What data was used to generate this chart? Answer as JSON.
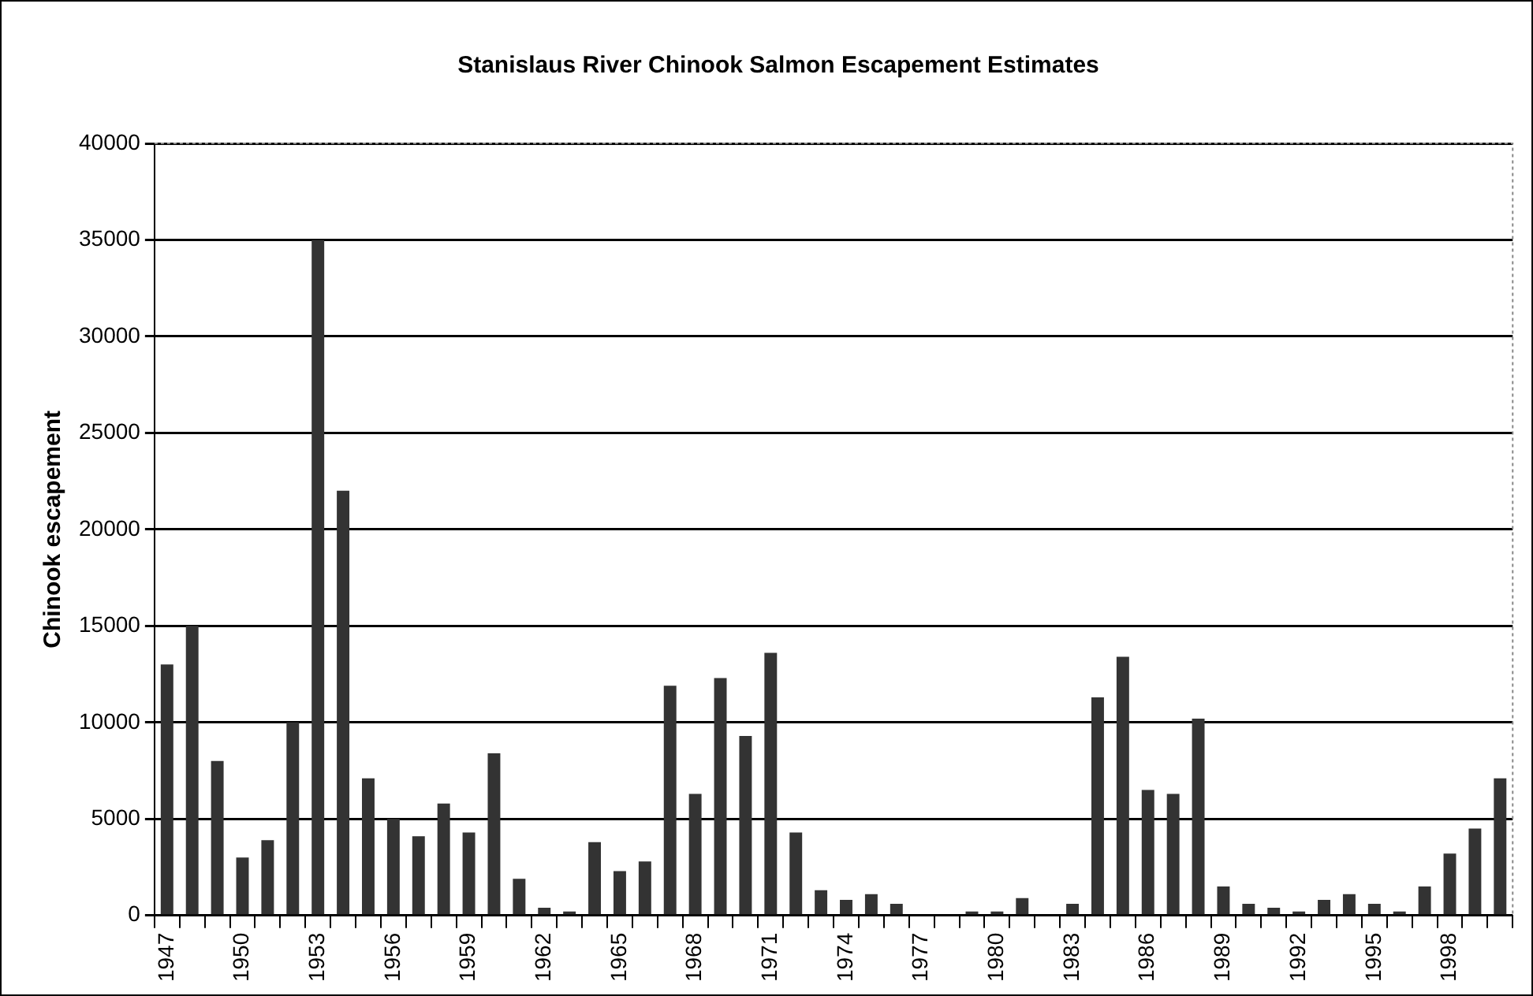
{
  "chart_data": {
    "type": "bar",
    "title": "Stanislaus River Chinook Salmon Escapement Estimates",
    "ylabel": "Chinook escapement",
    "categories": [
      "1947",
      null,
      null,
      "1950",
      null,
      null,
      "1953",
      null,
      null,
      "1956",
      null,
      null,
      "1959",
      null,
      null,
      "1962",
      null,
      null,
      "1965",
      null,
      null,
      "1968",
      null,
      null,
      "1971",
      null,
      null,
      "1974",
      null,
      null,
      "1977",
      null,
      null,
      "1980",
      null,
      null,
      "1983",
      null,
      null,
      "1986",
      null,
      null,
      "1989",
      null,
      null,
      "1992",
      null,
      null,
      "1995",
      null,
      null,
      "1998",
      null,
      null
    ],
    "values": [
      13000,
      15000,
      8000,
      3000,
      3900,
      10000,
      35000,
      22000,
      7100,
      5000,
      4100,
      5800,
      4300,
      8400,
      1900,
      400,
      200,
      3800,
      2300,
      2800,
      11900,
      6300,
      12300,
      9300,
      13600,
      4300,
      1300,
      800,
      1100,
      600,
      null,
      null,
      200,
      200,
      900,
      null,
      600,
      11300,
      13400,
      6500,
      6300,
      10200,
      1500,
      600,
      400,
      200,
      800,
      1100,
      600,
      200,
      1500,
      3200,
      4500,
      7100
    ],
    "color": "#333333",
    "ylim": [
      0,
      40000
    ],
    "yticks": [
      0,
      5000,
      10000,
      15000,
      20000,
      25000,
      30000,
      35000,
      40000
    ],
    "grid": "y"
  }
}
